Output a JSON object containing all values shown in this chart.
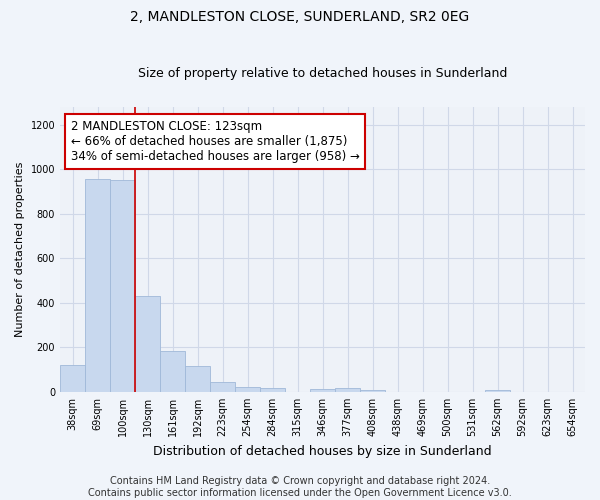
{
  "title": "2, MANDLESTON CLOSE, SUNDERLAND, SR2 0EG",
  "subtitle": "Size of property relative to detached houses in Sunderland",
  "xlabel": "Distribution of detached houses by size in Sunderland",
  "ylabel": "Number of detached properties",
  "categories": [
    "38sqm",
    "69sqm",
    "100sqm",
    "130sqm",
    "161sqm",
    "192sqm",
    "223sqm",
    "254sqm",
    "284sqm",
    "315sqm",
    "346sqm",
    "377sqm",
    "408sqm",
    "438sqm",
    "469sqm",
    "500sqm",
    "531sqm",
    "562sqm",
    "592sqm",
    "623sqm",
    "654sqm"
  ],
  "values": [
    120,
    955,
    950,
    430,
    185,
    118,
    45,
    20,
    18,
    0,
    15,
    17,
    10,
    0,
    0,
    0,
    0,
    10,
    0,
    0,
    0
  ],
  "bar_color": "#c8d8ee",
  "bar_edgecolor": "#a0b8d8",
  "vline_color": "#cc0000",
  "vline_position": 2.5,
  "annotation_text": "2 MANDLESTON CLOSE: 123sqm\n← 66% of detached houses are smaller (1,875)\n34% of semi-detached houses are larger (958) →",
  "annotation_box_color": "#ffffff",
  "annotation_box_edgecolor": "#cc0000",
  "ylim": [
    0,
    1280
  ],
  "yticks": [
    0,
    200,
    400,
    600,
    800,
    1000,
    1200
  ],
  "grid_color": "#d0d8e8",
  "background_color": "#f0f4fa",
  "plot_bg_color": "#eef2f8",
  "footer": "Contains HM Land Registry data © Crown copyright and database right 2024.\nContains public sector information licensed under the Open Government Licence v3.0.",
  "title_fontsize": 10,
  "subtitle_fontsize": 9,
  "xlabel_fontsize": 9,
  "ylabel_fontsize": 8,
  "tick_fontsize": 7,
  "annotation_fontsize": 8.5,
  "footer_fontsize": 7
}
